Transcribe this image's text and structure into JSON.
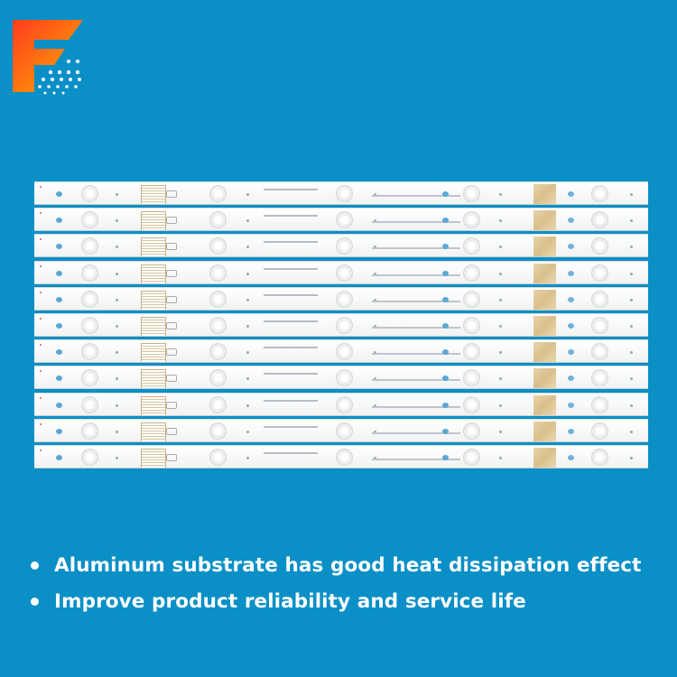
{
  "logo": {
    "name": "brand-logo-icon",
    "colors": [
      "#ff4d1f",
      "#ffb400",
      "#ffffff"
    ]
  },
  "strips": {
    "count": 11,
    "material": "LED backlight strips"
  },
  "features": [
    {
      "text": "Aluminum substrate has good heat dissipation effect"
    },
    {
      "text": "Improve product reliability and service life"
    }
  ]
}
